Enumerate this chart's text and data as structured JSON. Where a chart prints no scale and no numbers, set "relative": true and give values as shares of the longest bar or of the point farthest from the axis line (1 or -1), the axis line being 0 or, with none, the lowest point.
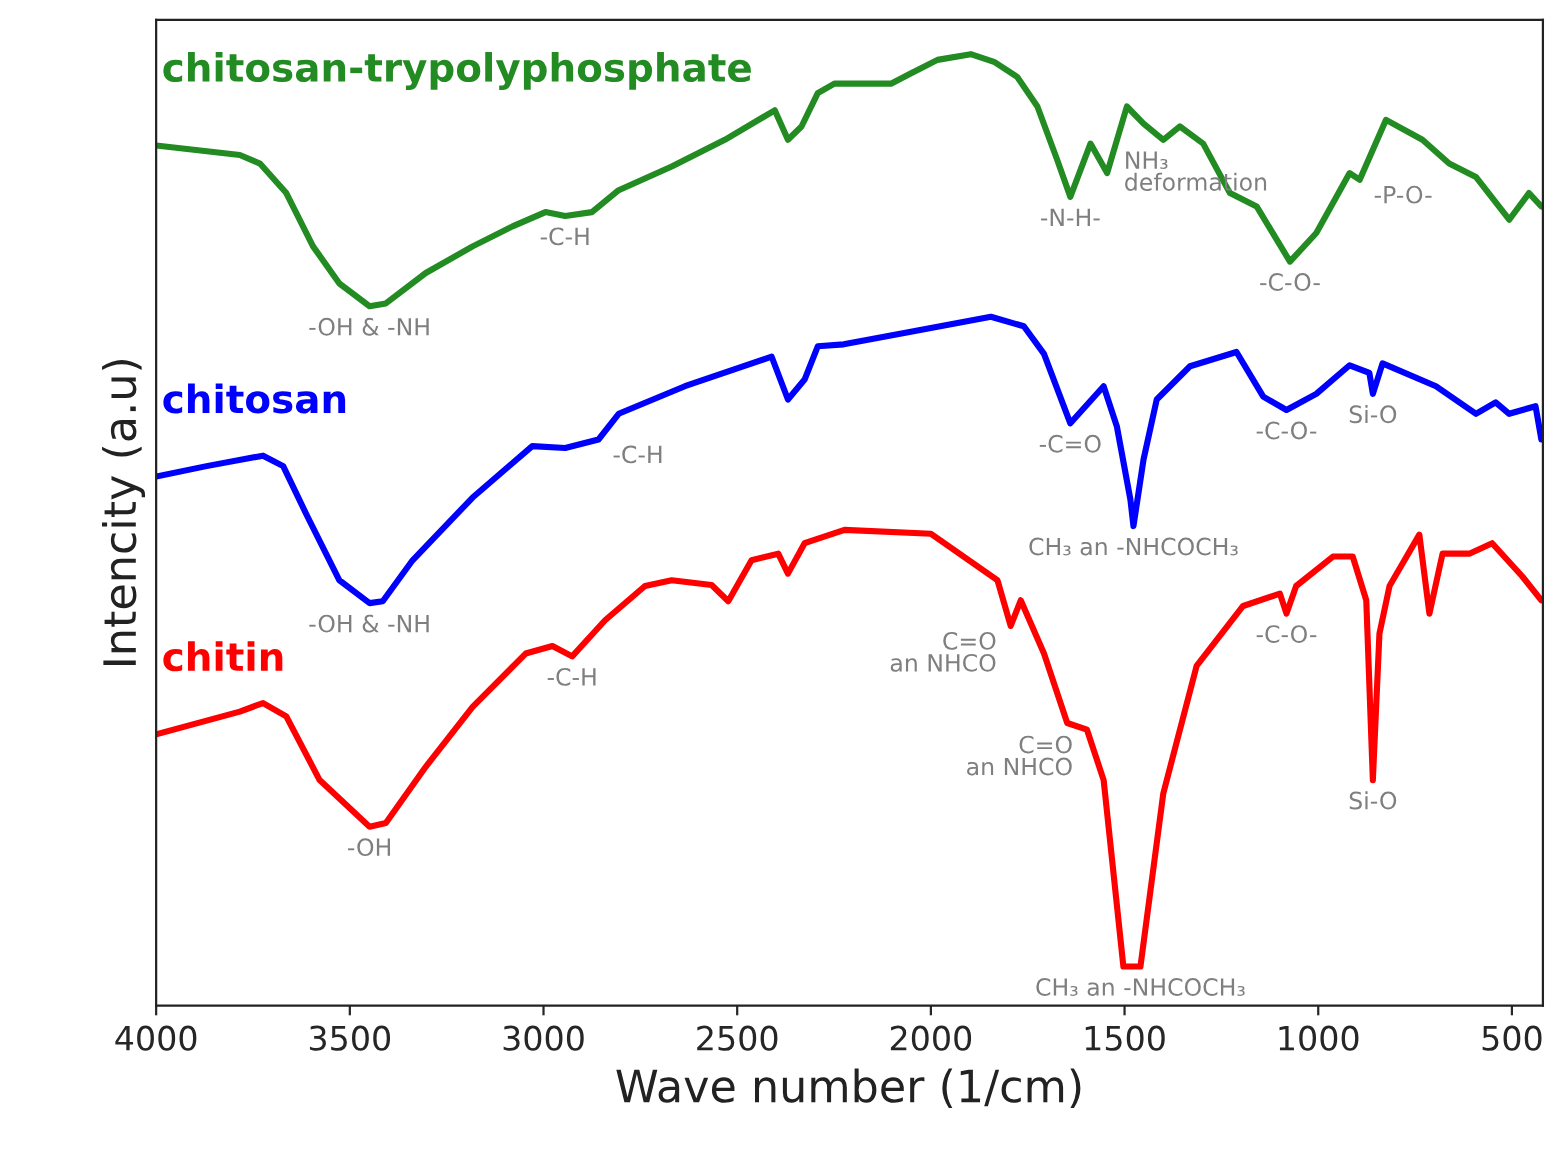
{
  "chart_data": {
    "type": "line",
    "relative": true,
    "xlabel": "Wave number (1/cm)",
    "ylabel": "Intencity (a.u)",
    "xlim": [
      4000,
      420
    ],
    "xticks": [
      4000,
      3500,
      3000,
      2500,
      2000,
      1500,
      1000,
      500
    ],
    "grid": false,
    "legend": false,
    "tick_labels": "x",
    "series": [
      {
        "name": "chitosan-trypolyphosphate",
        "color": "#228b22",
        "x": [
          4000,
          3784,
          3732,
          3664,
          3595,
          3527,
          3449,
          3407,
          3304,
          3183,
          3080,
          2995,
          2944,
          2875,
          2806,
          2669,
          2532,
          2403,
          2369,
          2334,
          2292,
          2249,
          2103,
          2051,
          1983,
          1897,
          1837,
          1777,
          1725,
          1674,
          1640,
          1588,
          1545,
          1494,
          1451,
          1400,
          1357,
          1297,
          1228,
          1159,
          1073,
          1005,
          919,
          893,
          825,
          731,
          662,
          593,
          507,
          456,
          424
        ],
        "values": [
          0.904,
          0.894,
          0.885,
          0.854,
          0.798,
          0.759,
          0.735,
          0.738,
          0.77,
          0.798,
          0.819,
          0.834,
          0.83,
          0.834,
          0.857,
          0.882,
          0.91,
          0.941,
          0.91,
          0.924,
          0.959,
          0.969,
          0.969,
          0.98,
          0.994,
          1.0,
          0.992,
          0.976,
          0.945,
          0.889,
          0.85,
          0.906,
          0.875,
          0.945,
          0.927,
          0.91,
          0.924,
          0.906,
          0.854,
          0.84,
          0.782,
          0.812,
          0.875,
          0.868,
          0.931,
          0.91,
          0.885,
          0.871,
          0.826,
          0.854,
          0.84
        ]
      },
      {
        "name": "chitosan",
        "color": "#0000ff",
        "x": [
          4000,
          3870,
          3724,
          3672,
          3613,
          3527,
          3449,
          3415,
          3338,
          3183,
          3029,
          2944,
          2858,
          2806,
          2635,
          2411,
          2369,
          2326,
          2292,
          2225,
          2069,
          1845,
          1760,
          1708,
          1640,
          1554,
          1520,
          1485,
          1477,
          1451,
          1417,
          1331,
          1211,
          1142,
          1082,
          1005,
          919,
          868,
          859,
          834,
          696,
          593,
          542,
          507,
          439,
          424
        ],
        "values": [
          0.556,
          0.567,
          0.578,
          0.567,
          0.517,
          0.447,
          0.423,
          0.425,
          0.468,
          0.534,
          0.588,
          0.586,
          0.595,
          0.622,
          0.651,
          0.682,
          0.637,
          0.658,
          0.693,
          0.695,
          0.707,
          0.724,
          0.714,
          0.685,
          0.612,
          0.651,
          0.609,
          0.532,
          0.504,
          0.574,
          0.637,
          0.672,
          0.687,
          0.64,
          0.626,
          0.643,
          0.673,
          0.665,
          0.643,
          0.675,
          0.651,
          0.622,
          0.634,
          0.622,
          0.63,
          0.595
        ]
      },
      {
        "name": "chitin",
        "color": "#ff0000",
        "x": [
          4000,
          3784,
          3724,
          3664,
          3578,
          3449,
          3407,
          3304,
          3183,
          3046,
          2977,
          2926,
          2841,
          2738,
          2669,
          2566,
          2523,
          2463,
          2394,
          2369,
          2326,
          2223,
          2000,
          1828,
          1794,
          1768,
          1708,
          1648,
          1597,
          1554,
          1503,
          1459,
          1400,
          1314,
          1194,
          1099,
          1082,
          1057,
          962,
          911,
          876,
          859,
          842,
          816,
          739,
          713,
          679,
          610,
          551,
          473,
          424
        ],
        "values": [
          0.285,
          0.309,
          0.318,
          0.304,
          0.237,
          0.188,
          0.192,
          0.251,
          0.314,
          0.37,
          0.378,
          0.367,
          0.405,
          0.441,
          0.447,
          0.442,
          0.425,
          0.468,
          0.475,
          0.454,
          0.486,
          0.5,
          0.496,
          0.447,
          0.399,
          0.426,
          0.37,
          0.297,
          0.29,
          0.237,
          0.041,
          0.041,
          0.223,
          0.357,
          0.42,
          0.433,
          0.412,
          0.441,
          0.472,
          0.472,
          0.426,
          0.237,
          0.391,
          0.441,
          0.495,
          0.412,
          0.475,
          0.475,
          0.486,
          0.451,
          0.426
        ]
      }
    ],
    "annotations": [
      {
        "text": "-OH & -NH",
        "x": 3449,
        "y": 0.735
      },
      {
        "text": "-C-H",
        "x": 2944,
        "y": 0.83
      },
      {
        "text": "-N-H-",
        "x": 1640,
        "y": 0.85
      },
      {
        "text": "NH₃\ndeformation",
        "x": 1545,
        "y": 0.875
      },
      {
        "text": "-C-O-",
        "x": 1073,
        "y": 0.782
      },
      {
        "text": "-P-O-",
        "x": 893,
        "y": 0.868
      },
      {
        "text": "-C-H",
        "x": 2858,
        "y": 0.595
      },
      {
        "text": "-OH & -NH",
        "x": 3449,
        "y": 0.423
      },
      {
        "text": "-C=O",
        "x": 1640,
        "y": 0.612
      },
      {
        "text": "CH₃ an -NHCOCH₃",
        "x": 1477,
        "y": 0.504
      },
      {
        "text": "-C-O-",
        "x": 1082,
        "y": 0.626
      },
      {
        "text": "Si-O",
        "x": 859,
        "y": 0.643
      },
      {
        "text": "-C-H",
        "x": 2926,
        "y": 0.367
      },
      {
        "text": "-OH",
        "x": 3449,
        "y": 0.188
      },
      {
        "text": "C=O\nan NHCO",
        "x": 1794,
        "y": 0.399
      },
      {
        "text": "C=O\nan NHCO",
        "x": 1597,
        "y": 0.29
      },
      {
        "text": "-C-O-",
        "x": 1082,
        "y": 0.412
      },
      {
        "text": "Si-O",
        "x": 859,
        "y": 0.237
      },
      {
        "text": "CH₃ an -NHCOCH₃",
        "x": 1459,
        "y": 0.041
      }
    ]
  }
}
